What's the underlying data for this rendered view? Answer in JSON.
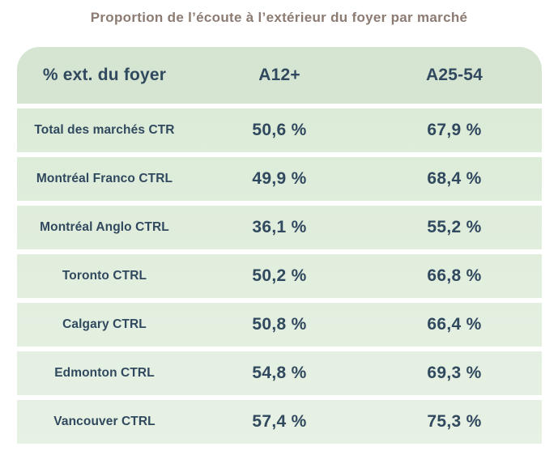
{
  "title": "Proportion de l’écoute à l’extérieur du foyer par marché",
  "table": {
    "columns": [
      "% ext. du foyer",
      "A12+",
      "A25-54"
    ],
    "rows": [
      {
        "market": "Total des marchés CTR",
        "a12_plus": "50,6 %",
        "a25_54": "67,9 %"
      },
      {
        "market": "Montréal Franco CTRL",
        "a12_plus": "49,9 %",
        "a25_54": "68,4 %"
      },
      {
        "market": "Montréal Anglo CTRL",
        "a12_plus": "36,1 %",
        "a25_54": "55,2 %"
      },
      {
        "market": "Toronto CTRL",
        "a12_plus": "50,2 %",
        "a25_54": "66,8 %"
      },
      {
        "market": "Calgary CTRL",
        "a12_plus": "50,8 %",
        "a25_54": "66,4 %"
      },
      {
        "market": "Edmonton CTRL",
        "a12_plus": "54,8 %",
        "a25_54": "69,3 %"
      },
      {
        "market": "Vancouver CTRL",
        "a12_plus": "57,4 %",
        "a25_54": "75,3 %"
      }
    ]
  },
  "theme": {
    "title_color": "#8c7b72",
    "header_bg": "#d6e5d1",
    "row_bg_top": "#dcebd8",
    "row_bg_bottom": "#e7f1e4",
    "text_color": "#31495f",
    "page_bg": "#ffffff"
  },
  "chart_data": {
    "type": "table",
    "title": "Proportion de l’écoute à l’extérieur du foyer par marché",
    "categories": [
      "Total des marchés CTR",
      "Montréal Franco CTRL",
      "Montréal Anglo CTRL",
      "Toronto CTRL",
      "Calgary CTRL",
      "Edmonton CTRL",
      "Vancouver CTRL"
    ],
    "series": [
      {
        "name": "A12+",
        "values": [
          50.6,
          49.9,
          36.1,
          50.2,
          50.8,
          54.8,
          57.4
        ]
      },
      {
        "name": "A25-54",
        "values": [
          67.9,
          68.4,
          55.2,
          66.8,
          66.4,
          69.3,
          75.3
        ]
      }
    ],
    "unit": "%",
    "value_format": "fr-CA comma decimal",
    "legend_position": "column headers"
  }
}
